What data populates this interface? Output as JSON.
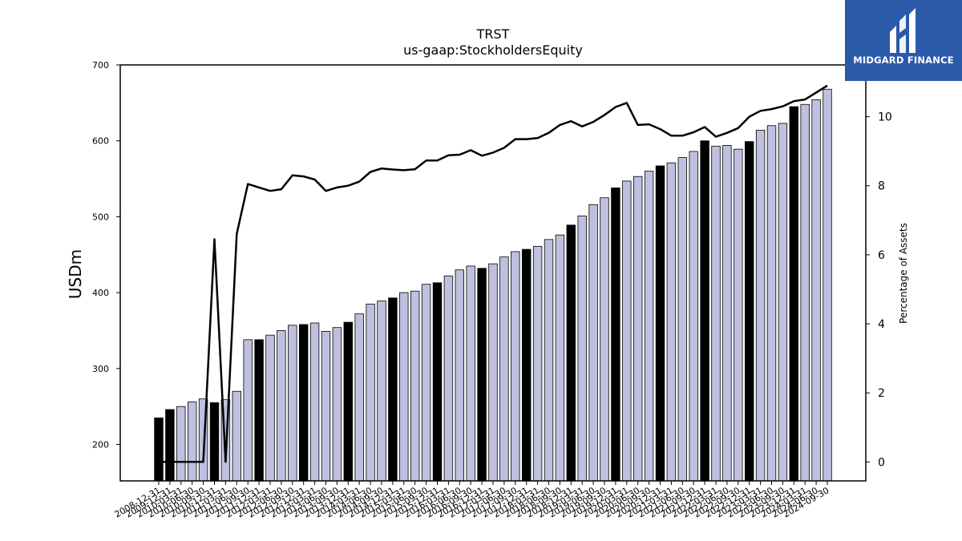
{
  "chart_data": {
    "type": "bar",
    "title": "TRST",
    "subtitle": "us-gaap:StockholdersEquity",
    "ylabel": "USDm",
    "y2label": "Percentage of Assets",
    "ylim": [
      152,
      700
    ],
    "y2lim": [
      -0.55,
      11.5
    ],
    "yticks": [
      200,
      300,
      400,
      500,
      600,
      700
    ],
    "y2ticks": [
      0,
      2,
      4,
      6,
      8,
      10
    ],
    "categories": [
      "2008-12-31",
      "2009-12-31",
      "2010-03-31",
      "2010-06-30",
      "2010-09-30",
      "2010-12-31",
      "2011-03-31",
      "2011-06-30",
      "2011-09-30",
      "2011-12-31",
      "2012-03-31",
      "2012-06-30",
      "2012-09-30",
      "2012-12-31",
      "2013-03-31",
      "2013-06-30",
      "2013-09-30",
      "2013-12-31",
      "2014-03-31",
      "2014-06-30",
      "2014-09-30",
      "2014-12-31",
      "2015-03-31",
      "2015-06-30",
      "2015-09-30",
      "2015-12-31",
      "2016-03-31",
      "2016-06-30",
      "2016-09-30",
      "2016-12-31",
      "2017-03-31",
      "2017-06-30",
      "2017-09-30",
      "2017-12-31",
      "2018-03-31",
      "2018-06-30",
      "2018-09-30",
      "2018-12-31",
      "2019-03-31",
      "2019-06-30",
      "2019-09-30",
      "2019-12-31",
      "2020-03-31",
      "2020-06-30",
      "2020-09-30",
      "2020-12-31",
      "2021-03-31",
      "2021-06-30",
      "2021-09-30",
      "2021-12-31",
      "2022-03-31",
      "2022-06-30",
      "2022-09-30",
      "2022-12-31",
      "2023-03-31",
      "2023-06-30",
      "2023-09-30",
      "2023-12-31",
      "2024-03-31",
      "2024-06-30",
      "2024-09-30"
    ],
    "visible_tick_labels": [
      "2008-12-31",
      "2009-12-31",
      "2010-03-31",
      "2010-06-30",
      "2010-09-30",
      "2010-12-31",
      "2011-03-31",
      "2011-06-30",
      "2011-09-30",
      "2011-12-31",
      "2012-03-31",
      "2012-06-30",
      "2012-09-30",
      "2012-12-31",
      "2013-03-31",
      "2013-06-30",
      "2013-09-30",
      "2013-12-31",
      "2014-03-31",
      "2014-06-30",
      "2014-09-30",
      "2014-12-31",
      "2015-03-31",
      "2015-06-30",
      "2015-09-30",
      "2015-12-31",
      "2016-03-31",
      "2016-06-30",
      "2016-09-30",
      "2016-12-31",
      "2017-03-31",
      "2017-06-30",
      "2017-09-30",
      "2017-12-31",
      "2018-03-31",
      "2018-06-30",
      "2018-09-30",
      "2018-12-31",
      "2019-03-31",
      "2019-06-30",
      "2019-09-30",
      "2019-12-31",
      "2020-03-31",
      "2020-06-30",
      "2020-09-30",
      "2020-12-31",
      "2021-03-31",
      "2021-06-30",
      "2021-09-30",
      "2021-12-31",
      "2022-03-31",
      "2022-06-30",
      "2022-09-30",
      "2022-12-31",
      "2023-03-31",
      "2023-06-30",
      "2023-09-30",
      "2023-12-31",
      "2024-03-31",
      "2024-06-30",
      "2024-09-30"
    ],
    "series": [
      {
        "type": "bar",
        "values": [
          235,
          246,
          250,
          256,
          260,
          255,
          259,
          270,
          338,
          338,
          344,
          350,
          357,
          358,
          360,
          349,
          354,
          361,
          372,
          385,
          389,
          393,
          400,
          402,
          411,
          413,
          422,
          430,
          435,
          432,
          438,
          447,
          454,
          457,
          461,
          470,
          476,
          489,
          501,
          516,
          525,
          538,
          547,
          553,
          560,
          567,
          571,
          578,
          586,
          600,
          593,
          594,
          589,
          599,
          614,
          620,
          623,
          645,
          648,
          654,
          668
        ],
        "highlight": [
          true,
          true,
          false,
          false,
          false,
          true,
          false,
          false,
          false,
          true,
          false,
          false,
          false,
          true,
          false,
          false,
          false,
          true,
          false,
          false,
          false,
          true,
          false,
          false,
          false,
          true,
          false,
          false,
          false,
          true,
          false,
          false,
          false,
          true,
          false,
          false,
          false,
          true,
          false,
          false,
          false,
          true,
          false,
          false,
          false,
          true,
          false,
          false,
          false,
          true,
          false,
          false,
          false,
          true,
          false,
          false,
          false,
          true,
          false,
          false,
          false
        ]
      },
      {
        "type": "line",
        "values": [
          0,
          0,
          0,
          0,
          0,
          6.45,
          0,
          6.6,
          8.05,
          7.95,
          7.85,
          7.9,
          8.3,
          8.27,
          8.18,
          7.85,
          7.95,
          8.0,
          8.12,
          8.4,
          8.5,
          8.47,
          8.45,
          8.48,
          8.73,
          8.73,
          8.88,
          8.9,
          9.03,
          8.87,
          8.96,
          9.1,
          9.35,
          9.35,
          9.38,
          9.53,
          9.76,
          9.87,
          9.72,
          9.85,
          10.05,
          10.28,
          10.4,
          9.76,
          9.78,
          9.64,
          9.45,
          9.45,
          9.55,
          9.7,
          9.42,
          9.53,
          9.67,
          10.0,
          10.17,
          10.22,
          10.3,
          10.45,
          10.5,
          10.7,
          10.9
        ]
      }
    ],
    "colors": {
      "bar_fill": "#bfbfdf",
      "bar_highlight": "#000000",
      "line": "#000000",
      "logo_bg": "#2b5aa8"
    }
  },
  "logo": {
    "text": "MIDGARD FINANCE"
  }
}
